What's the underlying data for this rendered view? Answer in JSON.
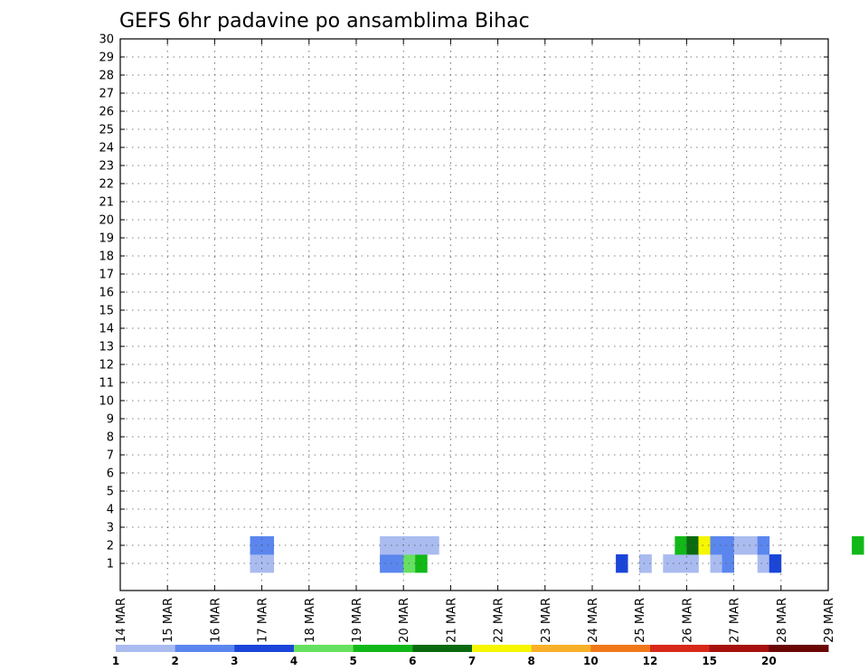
{
  "chart_data": {
    "type": "heatmap",
    "title": "GEFS 6hr padavine po ansamblima Bihac",
    "x_ticks": [
      "14 MAR",
      "15 MAR",
      "16 MAR",
      "17 MAR",
      "18 MAR",
      "19 MAR",
      "20 MAR",
      "21 MAR",
      "22 MAR",
      "23 MAR",
      "24 MAR",
      "25 MAR",
      "26 MAR",
      "27 MAR",
      "28 MAR",
      "29 MAR"
    ],
    "y_ticks": [
      "1",
      "2",
      "3",
      "4",
      "5",
      "6",
      "7",
      "8",
      "9",
      "10",
      "11",
      "12",
      "13",
      "14",
      "15",
      "16",
      "17",
      "18",
      "19",
      "20",
      "21",
      "22",
      "23",
      "24",
      "25",
      "26",
      "27",
      "28",
      "29",
      "30"
    ],
    "time_step_hours": 6,
    "grid": true,
    "colorbar": {
      "labels": [
        "1",
        "2",
        "3",
        "4",
        "5",
        "6",
        "7",
        "8",
        "10",
        "12",
        "15",
        "20"
      ],
      "colors": [
        "#aabbf0",
        "#5a86ee",
        "#1a45d8",
        "#66e060",
        "#11b818",
        "#0b6a10",
        "#f6f600",
        "#f8b028",
        "#f07818",
        "#d8281a",
        "#a8100e",
        "#6a0606"
      ]
    },
    "cells": [
      {
        "m": 1,
        "s": [
          [
            11,
            0
          ],
          [
            12,
            0
          ],
          [
            22,
            1
          ],
          [
            23,
            1
          ],
          [
            24,
            3
          ],
          [
            25,
            4
          ],
          [
            42,
            2
          ],
          [
            44,
            1
          ],
          [
            44,
            0
          ],
          [
            46,
            0
          ],
          [
            47,
            0
          ],
          [
            48,
            0
          ],
          [
            50,
            0
          ],
          [
            51,
            1
          ],
          [
            54,
            0
          ],
          [
            55,
            2
          ],
          [
            65,
            0
          ],
          [
            66,
            0
          ],
          [
            67,
            2
          ],
          [
            79,
            2
          ]
        ]
      },
      {
        "m": 2,
        "s": [
          [
            11,
            1
          ],
          [
            12,
            1
          ],
          [
            22,
            0
          ],
          [
            23,
            0
          ],
          [
            24,
            0
          ],
          [
            25,
            0
          ],
          [
            26,
            0
          ],
          [
            47,
            4
          ],
          [
            48,
            5
          ],
          [
            49,
            6
          ],
          [
            50,
            1
          ],
          [
            51,
            1
          ],
          [
            52,
            0
          ],
          [
            53,
            0
          ],
          [
            54,
            1
          ],
          [
            62,
            4
          ],
          [
            64,
            0
          ],
          [
            68,
            0
          ]
        ]
      }
    ]
  }
}
